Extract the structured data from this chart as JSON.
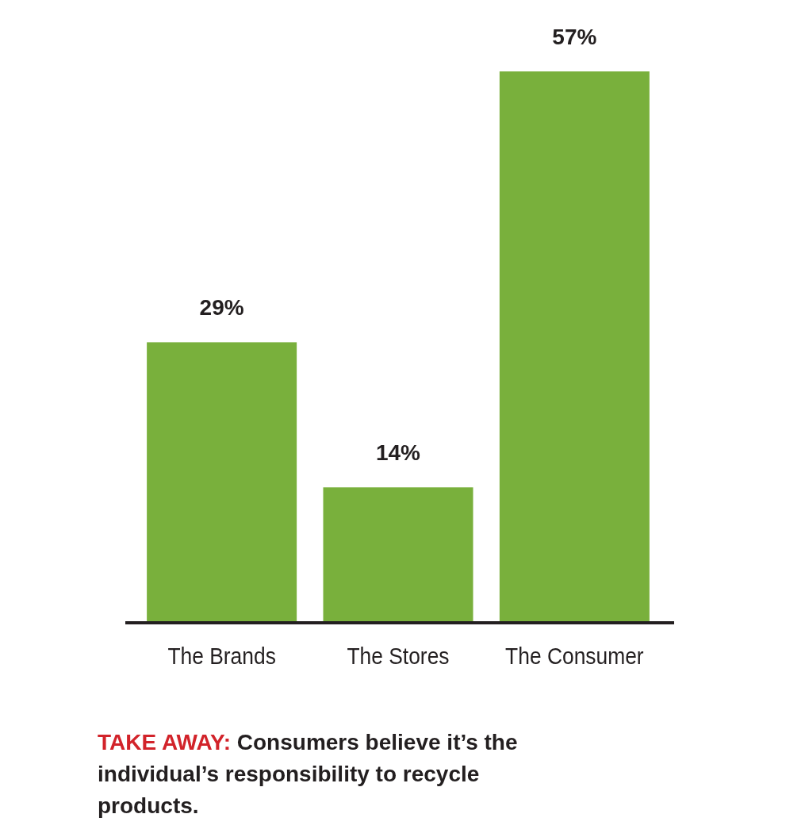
{
  "chart_data": {
    "type": "bar",
    "categories": [
      "The Brands",
      "The Stores",
      "The Consumer"
    ],
    "values": [
      29,
      14,
      57
    ],
    "color": "#79b03c",
    "value_labels": [
      "29%",
      "14%",
      "57%"
    ],
    "annotations": [
      "TAKE AWAY:",
      "Consumers believe it’s the individual’s responsibility to recycle products."
    ]
  }
}
